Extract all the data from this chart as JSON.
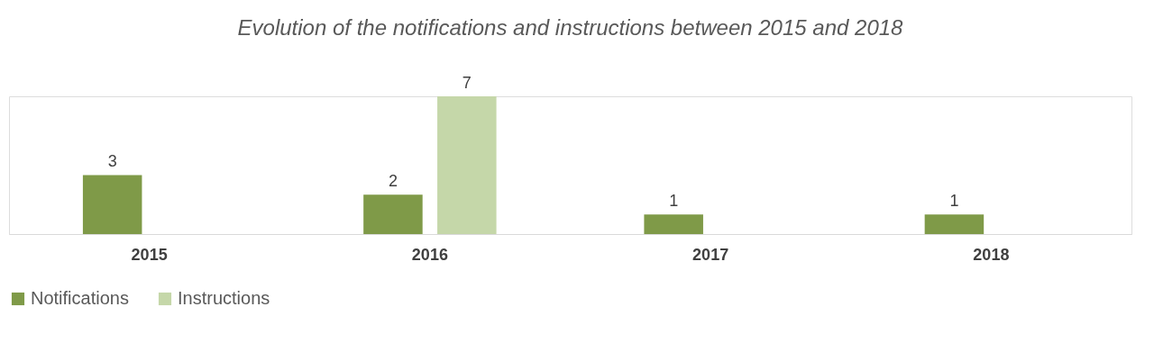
{
  "chart_data": {
    "type": "bar",
    "title": "Evolution of the notifications and instructions between 2015 and 2018",
    "categories": [
      "2015",
      "2016",
      "2017",
      "2018"
    ],
    "series": [
      {
        "name": "Notifications",
        "color": "#7f9a48",
        "values": [
          3,
          2,
          1,
          1
        ]
      },
      {
        "name": "Instructions",
        "color": "#c5d7a9",
        "values": [
          null,
          7,
          null,
          null
        ]
      }
    ],
    "data_labels": true,
    "legend": "bottom",
    "grid": false,
    "tick_labels": "x"
  }
}
